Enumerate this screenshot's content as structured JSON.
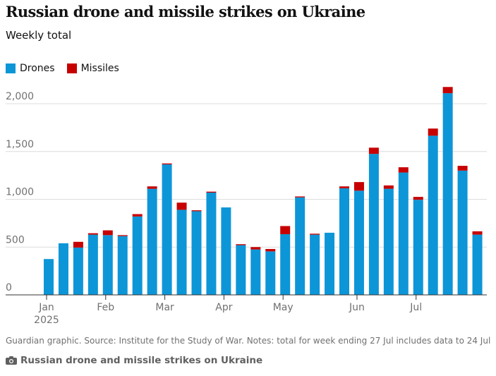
{
  "header": {
    "title": "Russian drone and missile strikes on Ukraine",
    "subtitle": "Weekly total"
  },
  "legend": [
    {
      "label": "Drones",
      "color": "#0d96d7"
    },
    {
      "label": "Missiles",
      "color": "#c70000"
    }
  ],
  "footer": {
    "note": "Guardian graphic. Source: Institute for the Study of War. Notes: total for week ending 27 Jul includes data to 24 Jul",
    "caption": "Russian drone and missile strikes on Ukraine",
    "caption_icon": "camera-icon"
  },
  "chart_data": {
    "type": "bar",
    "stacked": true,
    "grid": true,
    "legend_position": "top-left",
    "ylim": [
      0,
      2300
    ],
    "y_ticks": [
      {
        "value": 0,
        "label": "0"
      },
      {
        "value": 500,
        "label": "500"
      },
      {
        "value": 1000,
        "label": "1,000"
      },
      {
        "value": 1500,
        "label": "1,500"
      },
      {
        "value": 2000,
        "label": "2,000"
      }
    ],
    "x_ticks": [
      {
        "index": 0,
        "label": "Jan",
        "sublabel": "2025"
      },
      {
        "index": 4,
        "label": "Feb",
        "sublabel": ""
      },
      {
        "index": 8,
        "label": "Mar",
        "sublabel": ""
      },
      {
        "index": 12,
        "label": "Apr",
        "sublabel": ""
      },
      {
        "index": 16,
        "label": "May",
        "sublabel": ""
      },
      {
        "index": 21,
        "label": "Jun",
        "sublabel": ""
      },
      {
        "index": 25,
        "label": "Jul",
        "sublabel": ""
      }
    ],
    "series": [
      {
        "name": "Drones",
        "color": "#0d96d7",
        "values": [
          375,
          540,
          495,
          630,
          625,
          615,
          820,
          1110,
          1365,
          890,
          875,
          1070,
          915,
          520,
          475,
          455,
          635,
          1020,
          630,
          650,
          1115,
          1090,
          1475,
          1110,
          1280,
          995,
          1665,
          2110,
          1300,
          630
        ]
      },
      {
        "name": "Missiles",
        "color": "#c70000",
        "values": [
          0,
          0,
          60,
          15,
          50,
          10,
          25,
          25,
          10,
          75,
          10,
          10,
          0,
          10,
          25,
          25,
          85,
          10,
          10,
          0,
          20,
          90,
          65,
          35,
          55,
          30,
          75,
          65,
          50,
          35
        ]
      }
    ]
  }
}
